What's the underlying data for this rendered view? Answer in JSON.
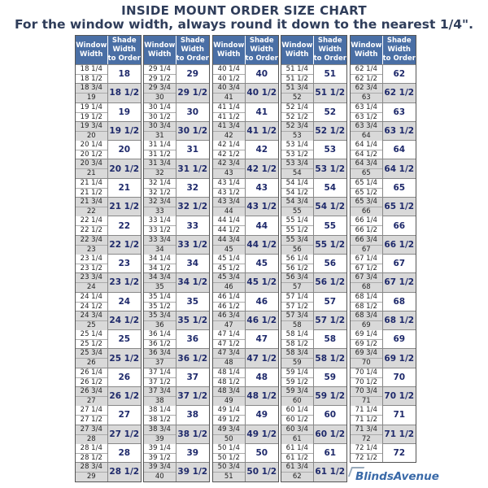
{
  "title": "INSIDE MOUNT ORDER SIZE CHART",
  "subtitle": "For the window width, always round it down to the nearest 1/4\".",
  "header": {
    "window": "Window Width",
    "shade": "Shade Width to Order"
  },
  "colors": {
    "header_bg": "#4a6fa5",
    "shade_text": "#1f2a6b",
    "alt_row": "#d9d9d9"
  },
  "logo": "BlindsAvenue",
  "groups": [
    {
      "rows": [
        {
          "w": [
            "18 1/4",
            "18 1/2"
          ],
          "s": "18"
        },
        {
          "w": [
            "18 3/4",
            "19"
          ],
          "s": "18 1/2"
        },
        {
          "w": [
            "19 1/4",
            "19 1/2"
          ],
          "s": "19"
        },
        {
          "w": [
            "19 3/4",
            "20"
          ],
          "s": "19 1/2"
        },
        {
          "w": [
            "20 1/4",
            "20 1/2"
          ],
          "s": "20"
        },
        {
          "w": [
            "20 3/4",
            "21"
          ],
          "s": "20 1/2"
        },
        {
          "w": [
            "21 1/4",
            "21 1/2"
          ],
          "s": "21"
        },
        {
          "w": [
            "21 3/4",
            "22"
          ],
          "s": "21 1/2"
        },
        {
          "w": [
            "22 1/4",
            "22 1/2"
          ],
          "s": "22"
        },
        {
          "w": [
            "22 3/4",
            "23"
          ],
          "s": "22 1/2"
        },
        {
          "w": [
            "23 1/4",
            "23 1/2"
          ],
          "s": "23"
        },
        {
          "w": [
            "23 3/4",
            "24"
          ],
          "s": "23 1/2"
        },
        {
          "w": [
            "24 1/4",
            "24 1/2"
          ],
          "s": "24"
        },
        {
          "w": [
            "24 3/4",
            "25"
          ],
          "s": "24 1/2"
        },
        {
          "w": [
            "25 1/4",
            "25 1/2"
          ],
          "s": "25"
        },
        {
          "w": [
            "25 3/4",
            "26"
          ],
          "s": "25 1/2"
        },
        {
          "w": [
            "26 1/4",
            "26 1/2"
          ],
          "s": "26"
        },
        {
          "w": [
            "26 3/4",
            "27"
          ],
          "s": "26 1/2"
        },
        {
          "w": [
            "27 1/4",
            "27 1/2"
          ],
          "s": "27"
        },
        {
          "w": [
            "27 3/4",
            "28"
          ],
          "s": "27 1/2"
        },
        {
          "w": [
            "28 1/4",
            "28 1/2"
          ],
          "s": "28"
        },
        {
          "w": [
            "28 3/4",
            "29"
          ],
          "s": "28 1/2"
        }
      ]
    },
    {
      "rows": [
        {
          "w": [
            "29 1/4",
            "29 1/2"
          ],
          "s": "29"
        },
        {
          "w": [
            "29 3/4",
            "30"
          ],
          "s": "29 1/2"
        },
        {
          "w": [
            "30 1/4",
            "30 1/2"
          ],
          "s": "30"
        },
        {
          "w": [
            "30 3/4",
            "31"
          ],
          "s": "30 1/2"
        },
        {
          "w": [
            "31 1/4",
            "31 1/2"
          ],
          "s": "31"
        },
        {
          "w": [
            "31 3/4",
            "32"
          ],
          "s": "31 1/2"
        },
        {
          "w": [
            "32 1/4",
            "32 1/2"
          ],
          "s": "32"
        },
        {
          "w": [
            "32 3/4",
            "33"
          ],
          "s": "32 1/2"
        },
        {
          "w": [
            "33 1/4",
            "33 1/2"
          ],
          "s": "33"
        },
        {
          "w": [
            "33 3/4",
            "34"
          ],
          "s": "33 1/2"
        },
        {
          "w": [
            "34 1/4",
            "34 1/2"
          ],
          "s": "34"
        },
        {
          "w": [
            "34 3/4",
            "35"
          ],
          "s": "34 1/2"
        },
        {
          "w": [
            "35 1/4",
            "35 1/2"
          ],
          "s": "35"
        },
        {
          "w": [
            "35 3/4",
            "36"
          ],
          "s": "35 1/2"
        },
        {
          "w": [
            "36 1/4",
            "36 1/2"
          ],
          "s": "36"
        },
        {
          "w": [
            "36 3/4",
            "37"
          ],
          "s": "36 1/2"
        },
        {
          "w": [
            "37 1/4",
            "37 1/2"
          ],
          "s": "37"
        },
        {
          "w": [
            "37 3/4",
            "38"
          ],
          "s": "37 1/2"
        },
        {
          "w": [
            "38 1/4",
            "38 1/2"
          ],
          "s": "38"
        },
        {
          "w": [
            "38 3/4",
            "39"
          ],
          "s": "38 1/2"
        },
        {
          "w": [
            "39 1/4",
            "39 1/2"
          ],
          "s": "39"
        },
        {
          "w": [
            "39 3/4",
            "40"
          ],
          "s": "39 1/2"
        }
      ]
    },
    {
      "rows": [
        {
          "w": [
            "40 1/4",
            "40 1/2"
          ],
          "s": "40"
        },
        {
          "w": [
            "40 3/4",
            "41"
          ],
          "s": "40 1/2"
        },
        {
          "w": [
            "41 1/4",
            "41 1/2"
          ],
          "s": "41"
        },
        {
          "w": [
            "41 3/4",
            "42"
          ],
          "s": "41 1/2"
        },
        {
          "w": [
            "42 1/4",
            "42 1/2"
          ],
          "s": "42"
        },
        {
          "w": [
            "42 3/4",
            "43"
          ],
          "s": "42 1/2"
        },
        {
          "w": [
            "43 1/4",
            "43 1/2"
          ],
          "s": "43"
        },
        {
          "w": [
            "43 3/4",
            "44"
          ],
          "s": "43 1/2"
        },
        {
          "w": [
            "44 1/4",
            "44 1/2"
          ],
          "s": "44"
        },
        {
          "w": [
            "44 3/4",
            "45"
          ],
          "s": "44 1/2"
        },
        {
          "w": [
            "45 1/4",
            "45 1/2"
          ],
          "s": "45"
        },
        {
          "w": [
            "45 3/4",
            "46"
          ],
          "s": "45 1/2"
        },
        {
          "w": [
            "46 1/4",
            "46 1/2"
          ],
          "s": "46"
        },
        {
          "w": [
            "46 3/4",
            "47"
          ],
          "s": "46 1/2"
        },
        {
          "w": [
            "47 1/4",
            "47 1/2"
          ],
          "s": "47"
        },
        {
          "w": [
            "47 3/4",
            "48"
          ],
          "s": "47 1/2"
        },
        {
          "w": [
            "48 1/4",
            "48 1/2"
          ],
          "s": "48"
        },
        {
          "w": [
            "48 3/4",
            "49"
          ],
          "s": "48 1/2"
        },
        {
          "w": [
            "49 1/4",
            "49 1/2"
          ],
          "s": "49"
        },
        {
          "w": [
            "49 3/4",
            "50"
          ],
          "s": "49 1/2"
        },
        {
          "w": [
            "50 1/4",
            "50 1/2"
          ],
          "s": "50"
        },
        {
          "w": [
            "50 3/4",
            "51"
          ],
          "s": "50 1/2"
        }
      ]
    },
    {
      "rows": [
        {
          "w": [
            "51 1/4",
            "51 1/2"
          ],
          "s": "51"
        },
        {
          "w": [
            "51 3/4",
            "52"
          ],
          "s": "51 1/2"
        },
        {
          "w": [
            "52 1/4",
            "52 1/2"
          ],
          "s": "52"
        },
        {
          "w": [
            "52 3/4",
            "53"
          ],
          "s": "52 1/2"
        },
        {
          "w": [
            "53 1/4",
            "53 1/2"
          ],
          "s": "53"
        },
        {
          "w": [
            "53 3/4",
            "54"
          ],
          "s": "53 1/2"
        },
        {
          "w": [
            "54 1/4",
            "54 1/2"
          ],
          "s": "54"
        },
        {
          "w": [
            "54 3/4",
            "55"
          ],
          "s": "54 1/2"
        },
        {
          "w": [
            "55 1/4",
            "55 1/2"
          ],
          "s": "55"
        },
        {
          "w": [
            "55 3/4",
            "56"
          ],
          "s": "55 1/2"
        },
        {
          "w": [
            "56 1/4",
            "56 1/2"
          ],
          "s": "56"
        },
        {
          "w": [
            "56 3/4",
            "57"
          ],
          "s": "56 1/2"
        },
        {
          "w": [
            "57 1/4",
            "57 1/2"
          ],
          "s": "57"
        },
        {
          "w": [
            "57 3/4",
            "58"
          ],
          "s": "57 1/2"
        },
        {
          "w": [
            "58 1/4",
            "58 1/2"
          ],
          "s": "58"
        },
        {
          "w": [
            "58 3/4",
            "59"
          ],
          "s": "58 1/2"
        },
        {
          "w": [
            "59 1/4",
            "59 1/2"
          ],
          "s": "59"
        },
        {
          "w": [
            "59 3/4",
            "60"
          ],
          "s": "59 1/2"
        },
        {
          "w": [
            "60 1/4",
            "60 1/2"
          ],
          "s": "60"
        },
        {
          "w": [
            "60 3/4",
            "61"
          ],
          "s": "60 1/2"
        },
        {
          "w": [
            "61 1/4",
            "61 1/2"
          ],
          "s": "61"
        },
        {
          "w": [
            "61 3/4",
            "62"
          ],
          "s": "61 1/2"
        }
      ]
    },
    {
      "rows": [
        {
          "w": [
            "62 1/4",
            "62 1/2"
          ],
          "s": "62"
        },
        {
          "w": [
            "62 3/4",
            "63"
          ],
          "s": "62 1/2"
        },
        {
          "w": [
            "63 1/4",
            "63 1/2"
          ],
          "s": "63"
        },
        {
          "w": [
            "63 3/4",
            "64"
          ],
          "s": "63 1/2"
        },
        {
          "w": [
            "64 1/4",
            "64 1/2"
          ],
          "s": "64"
        },
        {
          "w": [
            "64 3/4",
            "65"
          ],
          "s": "64 1/2"
        },
        {
          "w": [
            "65 1/4",
            "65 1/2"
          ],
          "s": "65"
        },
        {
          "w": [
            "65 3/4",
            "66"
          ],
          "s": "65 1/2"
        },
        {
          "w": [
            "66 1/4",
            "66 1/2"
          ],
          "s": "66"
        },
        {
          "w": [
            "66 3/4",
            "67"
          ],
          "s": "66 1/2"
        },
        {
          "w": [
            "67 1/4",
            "67 1/2"
          ],
          "s": "67"
        },
        {
          "w": [
            "67 3/4",
            "68"
          ],
          "s": "67 1/2"
        },
        {
          "w": [
            "68 1/4",
            "68 1/2"
          ],
          "s": "68"
        },
        {
          "w": [
            "68 3/4",
            "69"
          ],
          "s": "68 1/2"
        },
        {
          "w": [
            "69 1/4",
            "69 1/2"
          ],
          "s": "69"
        },
        {
          "w": [
            "69 3/4",
            "70"
          ],
          "s": "69 1/2"
        },
        {
          "w": [
            "70 1/4",
            "70 1/2"
          ],
          "s": "70"
        },
        {
          "w": [
            "70 3/4",
            "71"
          ],
          "s": "70 1/2"
        },
        {
          "w": [
            "71 1/4",
            "71 1/2"
          ],
          "s": "71"
        },
        {
          "w": [
            "71 3/4",
            "72"
          ],
          "s": "71 1/2"
        },
        {
          "w": [
            "72 1/4",
            "72 1/2"
          ],
          "s": "72"
        }
      ]
    }
  ]
}
